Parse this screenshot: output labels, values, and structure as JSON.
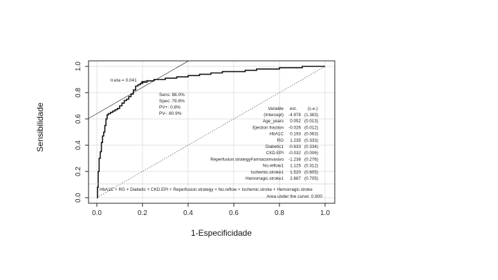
{
  "chart_data": {
    "type": "line",
    "xlabel": "1-Especificidade",
    "ylabel": "Sensibilidade",
    "xlim": [
      0,
      1
    ],
    "ylim": [
      0,
      1
    ],
    "x_ticks": [
      "0.0",
      "0.2",
      "0.4",
      "0.6",
      "0.8",
      "1.0"
    ],
    "y_ticks": [
      "0.0",
      "0.2",
      "0.4",
      "0.6",
      "0.8",
      "1.0"
    ],
    "grid": true,
    "roc_curve": {
      "x": [
        0.0,
        0.003,
        0.006,
        0.01,
        0.015,
        0.02,
        0.025,
        0.03,
        0.035,
        0.04,
        0.045,
        0.05,
        0.06,
        0.07,
        0.08,
        0.09,
        0.1,
        0.11,
        0.12,
        0.13,
        0.14,
        0.15,
        0.16,
        0.17,
        0.18,
        0.19,
        0.2,
        0.22,
        0.25,
        0.28,
        0.3,
        0.32,
        0.35,
        0.4,
        0.45,
        0.5,
        0.55,
        0.6,
        0.65,
        0.7,
        0.75,
        0.8,
        0.85,
        0.9,
        0.95,
        1.0
      ],
      "y": [
        0.0,
        0.08,
        0.2,
        0.3,
        0.35,
        0.42,
        0.47,
        0.5,
        0.55,
        0.6,
        0.63,
        0.64,
        0.65,
        0.66,
        0.67,
        0.68,
        0.7,
        0.72,
        0.74,
        0.75,
        0.77,
        0.79,
        0.82,
        0.85,
        0.86,
        0.87,
        0.88,
        0.89,
        0.9,
        0.9,
        0.91,
        0.91,
        0.92,
        0.93,
        0.94,
        0.95,
        0.96,
        0.96,
        0.97,
        0.98,
        0.98,
        0.99,
        0.99,
        1.0,
        1.0,
        1.0
      ]
    },
    "reference_line": {
      "x": [
        0,
        1
      ],
      "y": [
        0,
        1
      ]
    },
    "tangent_line": {
      "x": [
        0.0,
        0.4
      ],
      "y": [
        0.64,
        1.04
      ]
    },
    "cutoff_point": {
      "x": 0.2,
      "y": 0.88,
      "label": "lr.eta = 0.041"
    },
    "cutoff_stats": [
      "Sens: 88.0%",
      "Spec: 79.8%",
      "PV+: 0.8%",
      "PV-: 80.9%"
    ],
    "model_table": {
      "headers": [
        "Variable",
        "est.",
        "(s.e.)"
      ],
      "rows": [
        [
          "(Intercept)",
          "-4.978",
          "(1.383)"
        ],
        [
          "Age_years",
          "0.052",
          "(0.013)"
        ],
        [
          "Ejection fraction",
          "-0.026",
          "(0.012)"
        ],
        [
          "HbA1C",
          "0.193",
          "(0.063)"
        ],
        [
          "RG",
          "1.235",
          "(0.333)"
        ],
        [
          "Diabetic1",
          "-0.633",
          "(0.334)"
        ],
        [
          "CKD.EPI",
          "-0.032",
          "(0.006)"
        ],
        [
          "Reperfusion.strategyFarmacoinvasivo",
          "-1.238",
          "(0.276)"
        ],
        [
          "No.reflow1",
          "1.125",
          "(0.312)"
        ],
        [
          "Ischemic.stroke1",
          "1.520",
          "(0.605)"
        ],
        [
          "Hemorragic.stroke1",
          "2.887",
          "(0.705)"
        ]
      ]
    },
    "formula": "HbA1C + RG + Diabetic + CKD.EPI + Reperfusion.strategy + No.reflow + Ischemic.stroke + Hemorragic.stroke",
    "auc_text": "Area under the curve: 0.900"
  }
}
